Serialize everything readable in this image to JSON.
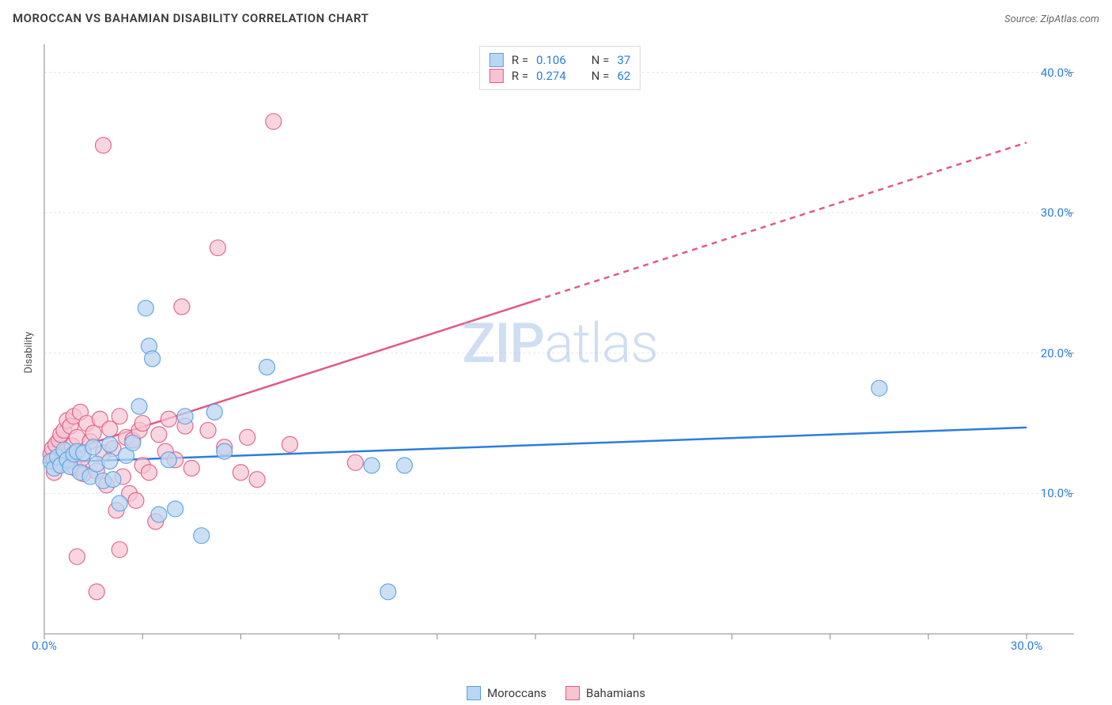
{
  "header": {
    "title": "MOROCCAN VS BAHAMIAN DISABILITY CORRELATION CHART",
    "source": "Source: ZipAtlas.com"
  },
  "watermark": {
    "zip": "ZIP",
    "atlas": "atlas"
  },
  "chart": {
    "type": "scatter",
    "y_axis_label": "Disability",
    "background_color": "#ffffff",
    "grid_color": "#e5e5e5",
    "axis_line_color": "#8a8a8a",
    "tick_color": "#8a8a8a",
    "tick_label_color": "#2b7de0",
    "tick_label_fontsize": 15,
    "xlim": [
      0,
      30
    ],
    "ylim": [
      0,
      42
    ],
    "x_ticks": [
      0,
      3,
      6,
      9,
      12,
      15,
      18,
      21,
      24,
      27,
      30
    ],
    "x_tick_labels": {
      "0": "0.0%",
      "30": "30.0%"
    },
    "y_ticks": [
      10,
      20,
      30,
      40
    ],
    "y_tick_labels": {
      "10": "10.0%",
      "20": "20.0%",
      "30": "30.0%",
      "40": "40.0%"
    },
    "series": [
      {
        "key": "moroccans",
        "label": "Moroccans",
        "marker_fill": "#b9d6f2",
        "marker_stroke": "#5a9fe0",
        "marker_radius": 10,
        "marker_opacity": 0.75,
        "trend_color": "#2b7de0",
        "trend_width": 2.5,
        "trend_y_at_x0": 12.2,
        "trend_y_at_xmax": 14.7,
        "trend_dashed_from_x": null,
        "R": "0.106",
        "N": "37",
        "points": [
          [
            0.2,
            12.3
          ],
          [
            0.3,
            11.8
          ],
          [
            0.4,
            12.6
          ],
          [
            0.5,
            12.0
          ],
          [
            0.6,
            13.1
          ],
          [
            0.7,
            12.4
          ],
          [
            0.8,
            11.9
          ],
          [
            0.9,
            12.8
          ],
          [
            1.0,
            13.0
          ],
          [
            1.1,
            11.5
          ],
          [
            1.2,
            12.9
          ],
          [
            1.4,
            11.2
          ],
          [
            1.5,
            13.3
          ],
          [
            1.6,
            12.1
          ],
          [
            1.8,
            10.9
          ],
          [
            2.0,
            13.5
          ],
          [
            2.1,
            11.0
          ],
          [
            2.3,
            9.3
          ],
          [
            2.5,
            12.7
          ],
          [
            2.7,
            13.6
          ],
          [
            2.9,
            16.2
          ],
          [
            3.1,
            23.2
          ],
          [
            3.2,
            20.5
          ],
          [
            3.3,
            19.6
          ],
          [
            3.5,
            8.5
          ],
          [
            3.8,
            12.4
          ],
          [
            4.0,
            8.9
          ],
          [
            4.3,
            15.5
          ],
          [
            4.8,
            7.0
          ],
          [
            5.2,
            15.8
          ],
          [
            5.5,
            13.0
          ],
          [
            6.8,
            19.0
          ],
          [
            10.0,
            12.0
          ],
          [
            10.5,
            3.0
          ],
          [
            11.0,
            12.0
          ],
          [
            25.5,
            17.5
          ],
          [
            2.0,
            12.3
          ]
        ]
      },
      {
        "key": "bahamians",
        "label": "Bahamians",
        "marker_fill": "#f7c5d1",
        "marker_stroke": "#e05a85",
        "marker_radius": 10,
        "marker_opacity": 0.7,
        "trend_color": "#e05a85",
        "trend_width": 2.5,
        "trend_y_at_x0": 12.5,
        "trend_y_at_xmax": 35.0,
        "trend_dashed_from_x": 15.0,
        "R": "0.274",
        "N": "62",
        "points": [
          [
            0.2,
            12.8
          ],
          [
            0.25,
            13.2
          ],
          [
            0.3,
            12.4
          ],
          [
            0.35,
            13.5
          ],
          [
            0.4,
            12.0
          ],
          [
            0.45,
            13.8
          ],
          [
            0.5,
            14.2
          ],
          [
            0.55,
            12.6
          ],
          [
            0.6,
            14.5
          ],
          [
            0.65,
            13.0
          ],
          [
            0.7,
            15.2
          ],
          [
            0.75,
            12.3
          ],
          [
            0.8,
            14.8
          ],
          [
            0.85,
            13.4
          ],
          [
            0.9,
            15.5
          ],
          [
            0.95,
            11.8
          ],
          [
            1.0,
            14.0
          ],
          [
            1.1,
            15.8
          ],
          [
            1.15,
            12.5
          ],
          [
            1.2,
            11.4
          ],
          [
            1.3,
            15.0
          ],
          [
            1.4,
            13.7
          ],
          [
            1.5,
            14.3
          ],
          [
            1.6,
            11.6
          ],
          [
            1.7,
            15.3
          ],
          [
            1.8,
            12.9
          ],
          [
            1.9,
            10.6
          ],
          [
            2.0,
            14.6
          ],
          [
            2.1,
            13.2
          ],
          [
            2.2,
            8.8
          ],
          [
            2.3,
            15.5
          ],
          [
            2.4,
            11.2
          ],
          [
            2.5,
            14.0
          ],
          [
            2.6,
            10.0
          ],
          [
            2.7,
            13.8
          ],
          [
            2.8,
            9.5
          ],
          [
            2.9,
            14.5
          ],
          [
            3.0,
            12.0
          ],
          [
            3.2,
            11.5
          ],
          [
            3.4,
            8.0
          ],
          [
            3.5,
            14.2
          ],
          [
            3.7,
            13.0
          ],
          [
            3.8,
            15.3
          ],
          [
            4.0,
            12.4
          ],
          [
            4.2,
            23.3
          ],
          [
            4.3,
            14.8
          ],
          [
            4.5,
            11.8
          ],
          [
            5.0,
            14.5
          ],
          [
            5.3,
            27.5
          ],
          [
            5.5,
            13.3
          ],
          [
            6.0,
            11.5
          ],
          [
            6.2,
            14.0
          ],
          [
            6.5,
            11.0
          ],
          [
            7.0,
            36.5
          ],
          [
            7.5,
            13.5
          ],
          [
            1.0,
            5.5
          ],
          [
            1.6,
            3.0
          ],
          [
            2.3,
            6.0
          ],
          [
            1.8,
            34.8
          ],
          [
            3.0,
            15.0
          ],
          [
            9.5,
            12.2
          ],
          [
            0.3,
            11.5
          ]
        ]
      }
    ],
    "legend_top": {
      "border_color": "#d9d9d9",
      "bg_color": "#ffffff",
      "label_R": "R =",
      "label_N": "N ="
    }
  }
}
